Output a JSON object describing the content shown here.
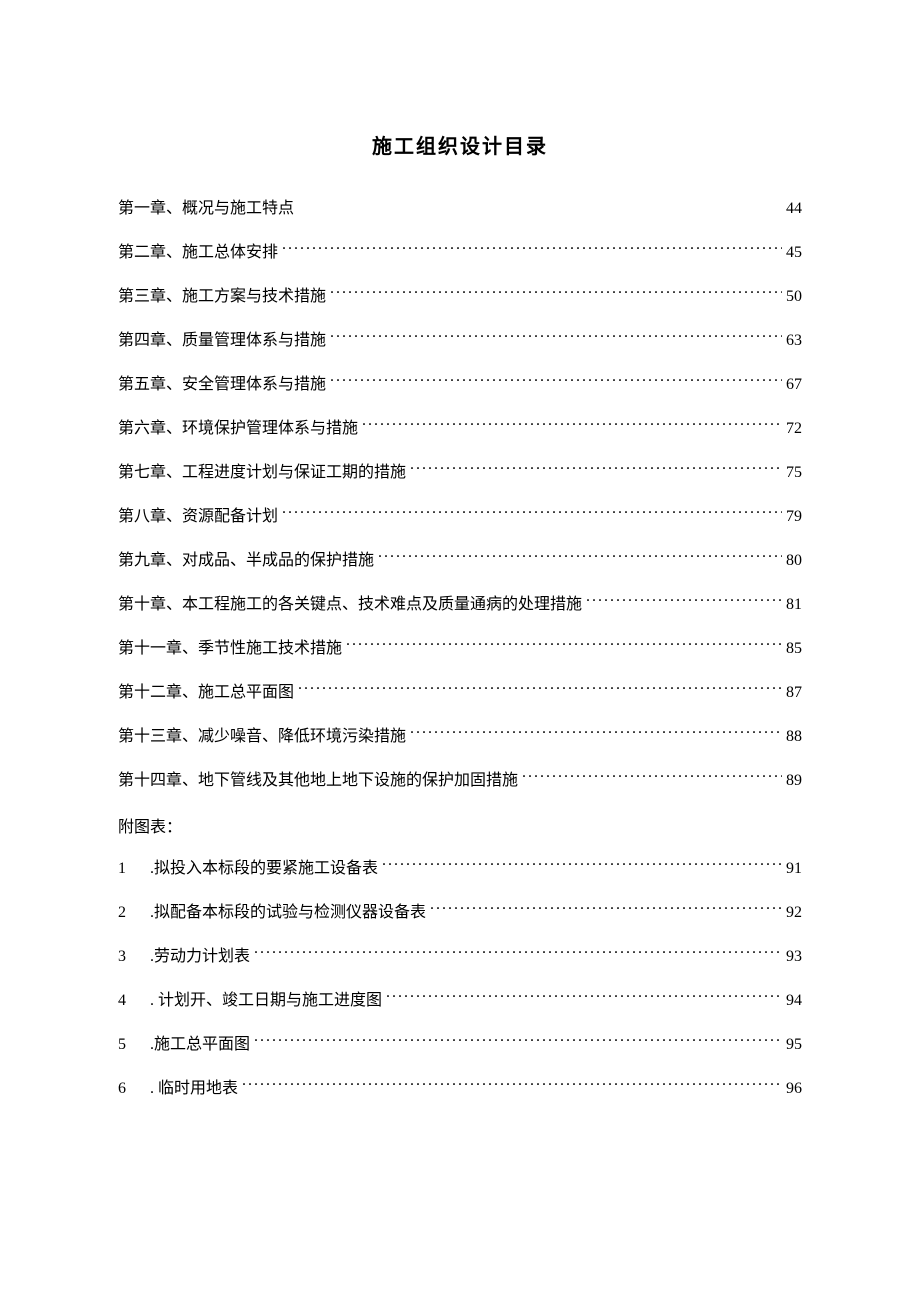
{
  "document": {
    "title": "施工组织设计目录",
    "background_color": "#ffffff",
    "text_color": "#000000",
    "title_fontsize": 20,
    "body_fontsize": 16,
    "font_family": "SimSun",
    "chapters": [
      {
        "label": "第一章、概况与施工特点",
        "page": "44",
        "dots": false
      },
      {
        "label": "第二章、施工总体安排",
        "page": "45",
        "dots": true
      },
      {
        "label": "第三章、施工方案与技术措施",
        "page": "50",
        "dots": true
      },
      {
        "label": "第四章、质量管理体系与措施",
        "page": "63",
        "dots": true
      },
      {
        "label": "第五章、安全管理体系与措施",
        "page": "67",
        "dots": true
      },
      {
        "label": "第六章、环境保护管理体系与措施",
        "page": "72",
        "dots": true
      },
      {
        "label": "第七章、工程进度计划与保证工期的措施",
        "page": "75",
        "dots": true
      },
      {
        "label": "第八章、资源配备计划",
        "page": "79",
        "dots": true
      },
      {
        "label": "第九章、对成品、半成品的保护措施",
        "page": "80",
        "dots": true
      },
      {
        "label": "第十章、本工程施工的各关键点、技术难点及质量通病的处理措施",
        "page": "81",
        "dots": true
      },
      {
        "label": "第十一章、季节性施工技术措施",
        "page": "85",
        "dots": true
      },
      {
        "label": "第十二章、施工总平面图",
        "page": "87",
        "dots": true
      },
      {
        "label": "第十三章、减少噪音、降低环境污染措施",
        "page": "88",
        "dots": true
      },
      {
        "label": "第十四章、地下管线及其他地上地下设施的保护加固措施",
        "page": "89",
        "dots": true
      }
    ],
    "appendix_heading": "附图表：",
    "appendices": [
      {
        "num": "1",
        "label": ".拟投入本标段的要紧施工设备表",
        "page": "91"
      },
      {
        "num": "2",
        "label": ".拟配备本标段的试验与检测仪器设备表",
        "page": "92"
      },
      {
        "num": "3",
        "label": ".劳动力计划表",
        "page": "93"
      },
      {
        "num": "4",
        "label": ". 计划开、竣工日期与施工进度图",
        "page": "94"
      },
      {
        "num": "5",
        "label": ".施工总平面图",
        "page": "95"
      },
      {
        "num": "6",
        "label": ". 临时用地表",
        "page": "96"
      }
    ]
  }
}
